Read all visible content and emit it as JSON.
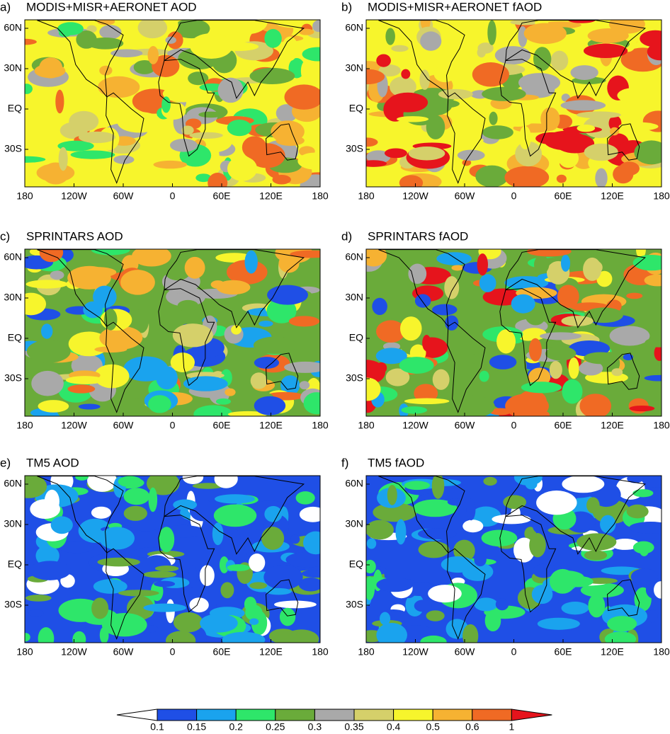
{
  "panels": [
    {
      "label": "a)",
      "title": "MODIS+MISR+AERONET AOD"
    },
    {
      "label": "b)",
      "title": "MODIS+MISR+AERONET fAOD"
    },
    {
      "label": "c)",
      "title": "SPRINTARS AOD"
    },
    {
      "label": "d)",
      "title": "SPRINTARS fAOD"
    },
    {
      "label": "e)",
      "title": "TM5 AOD"
    },
    {
      "label": "f)",
      "title": "TM5 fAOD"
    }
  ],
  "lon_labels": [
    "180",
    "120W",
    "60W",
    "0",
    "60E",
    "120E",
    "180"
  ],
  "lat_labels": [
    "60N",
    "30N",
    "EQ",
    "30S"
  ],
  "colorbar": {
    "levels": [
      0.1,
      0.15,
      0.2,
      0.25,
      0.3,
      0.35,
      0.4,
      0.5,
      0.6,
      1
    ],
    "colors": [
      "#ffffff",
      "#1f4fe6",
      "#1aa3ee",
      "#2ee66a",
      "#6aab3a",
      "#a9a9a9",
      "#d5d06a",
      "#f7f52c",
      "#f6b232",
      "#f06a24",
      "#e6141c"
    ]
  }
}
